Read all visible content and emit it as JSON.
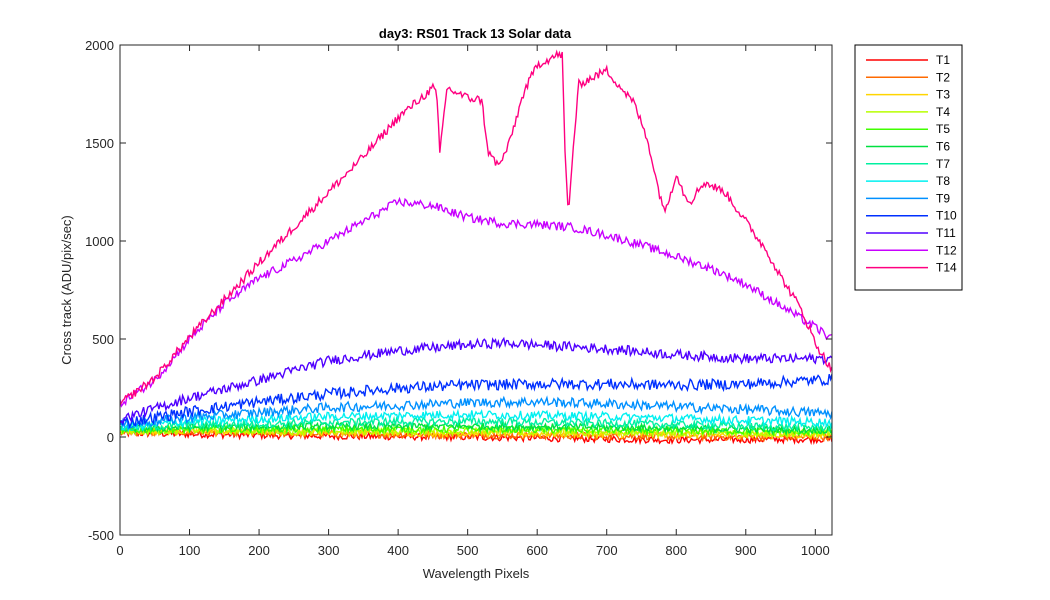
{
  "chart_data": {
    "type": "line",
    "title": "day3: RS01  Track 13 Solar data",
    "xlabel": "Wavelength Pixels",
    "ylabel": "Cross track (ADU/pix/sec)",
    "xlim": [
      0,
      1024
    ],
    "ylim": [
      -500,
      2000
    ],
    "xticks": [
      0,
      100,
      200,
      300,
      400,
      500,
      600,
      700,
      800,
      900,
      1000
    ],
    "yticks": [
      -500,
      0,
      500,
      1000,
      1500,
      2000
    ],
    "grid": false,
    "legend_position": "outside-right",
    "series": [
      {
        "name": "T1",
        "color": "#ff0000",
        "noise": 18,
        "points": [
          [
            0,
            20
          ],
          [
            100,
            15
          ],
          [
            300,
            5
          ],
          [
            500,
            0
          ],
          [
            600,
            -5
          ],
          [
            800,
            -15
          ],
          [
            1024,
            -10
          ]
        ]
      },
      {
        "name": "T2",
        "color": "#ff6a00",
        "noise": 18,
        "points": [
          [
            0,
            25
          ],
          [
            100,
            25
          ],
          [
            300,
            15
          ],
          [
            500,
            10
          ],
          [
            700,
            5
          ],
          [
            900,
            0
          ],
          [
            1024,
            0
          ]
        ]
      },
      {
        "name": "T3",
        "color": "#ffd500",
        "noise": 18,
        "points": [
          [
            0,
            30
          ],
          [
            100,
            30
          ],
          [
            300,
            25
          ],
          [
            500,
            20
          ],
          [
            700,
            15
          ],
          [
            900,
            10
          ],
          [
            1024,
            10
          ]
        ]
      },
      {
        "name": "T4",
        "color": "#b8ff00",
        "noise": 18,
        "points": [
          [
            0,
            30
          ],
          [
            100,
            35
          ],
          [
            300,
            30
          ],
          [
            500,
            30
          ],
          [
            700,
            25
          ],
          [
            900,
            20
          ],
          [
            1024,
            20
          ]
        ]
      },
      {
        "name": "T5",
        "color": "#40ff00",
        "noise": 18,
        "points": [
          [
            0,
            35
          ],
          [
            100,
            40
          ],
          [
            300,
            40
          ],
          [
            500,
            40
          ],
          [
            700,
            35
          ],
          [
            900,
            30
          ],
          [
            1024,
            25
          ]
        ]
      },
      {
        "name": "T6",
        "color": "#00e040",
        "noise": 18,
        "points": [
          [
            0,
            40
          ],
          [
            100,
            50
          ],
          [
            300,
            55
          ],
          [
            500,
            55
          ],
          [
            700,
            50
          ],
          [
            900,
            40
          ],
          [
            1024,
            35
          ]
        ]
      },
      {
        "name": "T7",
        "color": "#00f0a0",
        "noise": 20,
        "points": [
          [
            0,
            45
          ],
          [
            100,
            60
          ],
          [
            300,
            75
          ],
          [
            500,
            80
          ],
          [
            700,
            70
          ],
          [
            900,
            55
          ],
          [
            1024,
            50
          ]
        ]
      },
      {
        "name": "T8",
        "color": "#00f0f0",
        "noise": 22,
        "points": [
          [
            0,
            50
          ],
          [
            100,
            80
          ],
          [
            300,
            105
          ],
          [
            500,
            115
          ],
          [
            700,
            105
          ],
          [
            900,
            85
          ],
          [
            1024,
            75
          ]
        ]
      },
      {
        "name": "T9",
        "color": "#0090ff",
        "noise": 25,
        "points": [
          [
            0,
            60
          ],
          [
            100,
            100
          ],
          [
            300,
            150
          ],
          [
            500,
            175
          ],
          [
            600,
            180
          ],
          [
            700,
            170
          ],
          [
            900,
            140
          ],
          [
            1024,
            120
          ]
        ]
      },
      {
        "name": "T10",
        "color": "#0030ff",
        "noise": 28,
        "points": [
          [
            0,
            70
          ],
          [
            100,
            130
          ],
          [
            200,
            180
          ],
          [
            300,
            220
          ],
          [
            400,
            250
          ],
          [
            500,
            265
          ],
          [
            600,
            270
          ],
          [
            700,
            270
          ],
          [
            800,
            265
          ],
          [
            900,
            270
          ],
          [
            1024,
            295
          ]
        ]
      },
      {
        "name": "T11",
        "color": "#5000ff",
        "noise": 25,
        "points": [
          [
            0,
            90
          ],
          [
            100,
            200
          ],
          [
            200,
            290
          ],
          [
            300,
            390
          ],
          [
            400,
            440
          ],
          [
            500,
            470
          ],
          [
            550,
            480
          ],
          [
            600,
            470
          ],
          [
            700,
            450
          ],
          [
            800,
            420
          ],
          [
            900,
            400
          ],
          [
            1024,
            400
          ]
        ]
      },
      {
        "name": "T12",
        "color": "#c800ff",
        "noise": 22,
        "points": [
          [
            0,
            170
          ],
          [
            50,
            290
          ],
          [
            100,
            500
          ],
          [
            150,
            680
          ],
          [
            200,
            810
          ],
          [
            250,
            900
          ],
          [
            300,
            1000
          ],
          [
            350,
            1100
          ],
          [
            400,
            1200
          ],
          [
            450,
            1180
          ],
          [
            500,
            1120
          ],
          [
            550,
            1090
          ],
          [
            600,
            1085
          ],
          [
            650,
            1070
          ],
          [
            700,
            1030
          ],
          [
            750,
            980
          ],
          [
            800,
            920
          ],
          [
            850,
            860
          ],
          [
            900,
            780
          ],
          [
            950,
            670
          ],
          [
            1000,
            560
          ],
          [
            1024,
            500
          ]
        ]
      },
      {
        "name": "T14",
        "color": "#ff0080",
        "noise": 22,
        "points": [
          [
            0,
            170
          ],
          [
            50,
            300
          ],
          [
            100,
            510
          ],
          [
            150,
            700
          ],
          [
            200,
            890
          ],
          [
            250,
            1070
          ],
          [
            300,
            1250
          ],
          [
            350,
            1430
          ],
          [
            400,
            1630
          ],
          [
            450,
            1780
          ],
          [
            455,
            1760
          ],
          [
            460,
            1450
          ],
          [
            470,
            1780
          ],
          [
            500,
            1730
          ],
          [
            520,
            1720
          ],
          [
            530,
            1450
          ],
          [
            545,
            1380
          ],
          [
            560,
            1500
          ],
          [
            580,
            1750
          ],
          [
            600,
            1900
          ],
          [
            630,
            1950
          ],
          [
            636,
            1950
          ],
          [
            640,
            1450
          ],
          [
            645,
            1120
          ],
          [
            650,
            1400
          ],
          [
            660,
            1800
          ],
          [
            700,
            1870
          ],
          [
            740,
            1700
          ],
          [
            760,
            1500
          ],
          [
            775,
            1250
          ],
          [
            785,
            1150
          ],
          [
            800,
            1350
          ],
          [
            810,
            1250
          ],
          [
            820,
            1200
          ],
          [
            840,
            1300
          ],
          [
            870,
            1250
          ],
          [
            900,
            1100
          ],
          [
            930,
            950
          ],
          [
            950,
            820
          ],
          [
            980,
            650
          ],
          [
            1000,
            480
          ],
          [
            1024,
            340
          ]
        ]
      }
    ]
  }
}
